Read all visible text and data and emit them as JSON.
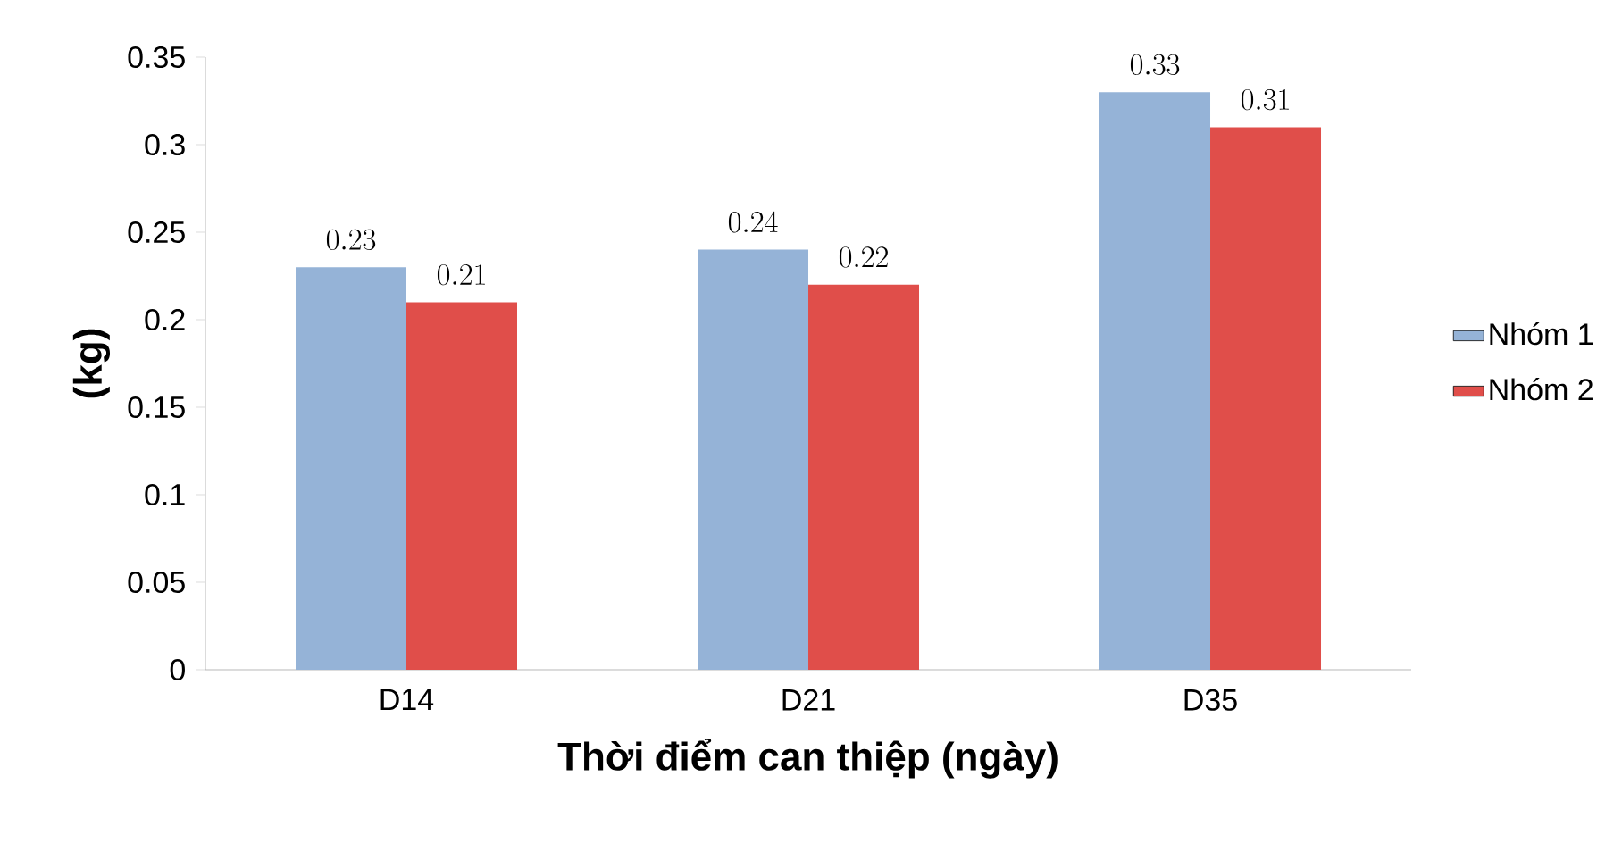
{
  "chart_data": {
    "type": "bar",
    "xlabel": "Thời điểm can thiệp (ngày)",
    "ylabel": "(kg)",
    "categories": [
      "D14",
      "D21",
      "D35"
    ],
    "series": [
      {
        "name": "Nhóm 1",
        "color": "#95b3d7",
        "values": [
          0.23,
          0.24,
          0.33
        ]
      },
      {
        "name": "Nhóm 2",
        "color": "#e04e4a",
        "values": [
          0.21,
          0.22,
          0.31
        ]
      }
    ],
    "ylim": [
      0,
      0.35
    ],
    "yticks": [
      0,
      0.05,
      0.1,
      0.15,
      0.2,
      0.25,
      0.3,
      0.35
    ],
    "data_labels": true,
    "legend": "right",
    "grid": false
  }
}
